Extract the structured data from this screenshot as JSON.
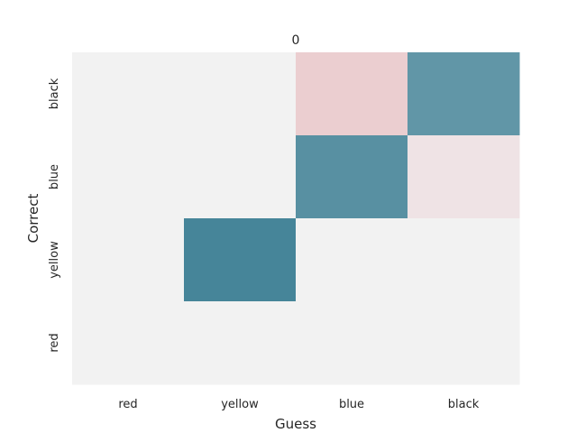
{
  "chart_data": {
    "type": "heatmap",
    "title": "0",
    "xlabel": "Guess",
    "ylabel": "Correct",
    "x_categories": [
      "red",
      "yellow",
      "blue",
      "black"
    ],
    "y_categories": [
      "black",
      "blue",
      "yellow",
      "red"
    ],
    "values": [
      [
        0.0,
        0.0,
        -0.25,
        0.8
      ],
      [
        0.0,
        0.0,
        0.85,
        -0.1
      ],
      [
        0.0,
        0.95,
        0.0,
        0.0
      ],
      [
        0.0,
        0.0,
        0.0,
        0.0
      ]
    ],
    "vmin": -1,
    "vmax": 1,
    "colormap": {
      "low": "#d7606b",
      "center": "#f2f2f2",
      "high": "#3d7f94"
    },
    "grid": false,
    "colorbar": false
  }
}
